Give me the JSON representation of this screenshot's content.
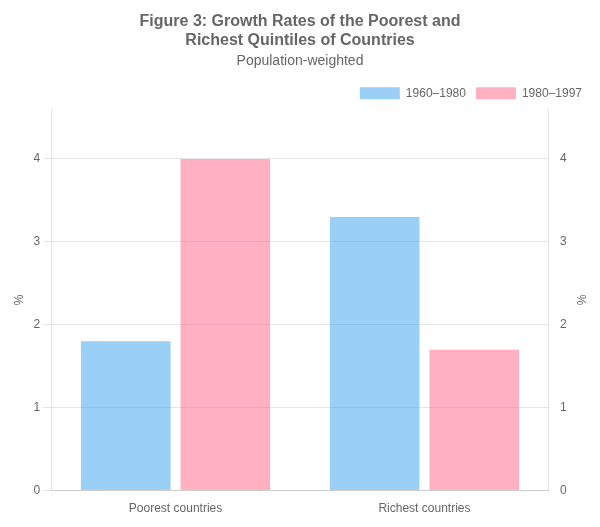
{
  "chart_data": {
    "type": "bar",
    "title": [
      "Figure 3: Growth Rates of the Poorest and",
      "Richest Quintiles of Countries"
    ],
    "subtitle": "Population-weighted",
    "categories": [
      "Poorest countries",
      "Richest countries"
    ],
    "series": [
      {
        "name": "1960–1980",
        "values": [
          1.8,
          3.3
        ]
      },
      {
        "name": "1980–1997",
        "values": [
          4.0,
          1.7
        ]
      }
    ],
    "ylabel": "%",
    "y2label": "%",
    "ylim": [
      0,
      4.6
    ],
    "yticks": [
      0,
      1,
      2,
      3,
      4
    ],
    "y2lim": [
      0,
      4.6
    ],
    "y2ticks": [
      0,
      1,
      2,
      3,
      4
    ],
    "grid": true,
    "legend": "upper right"
  }
}
